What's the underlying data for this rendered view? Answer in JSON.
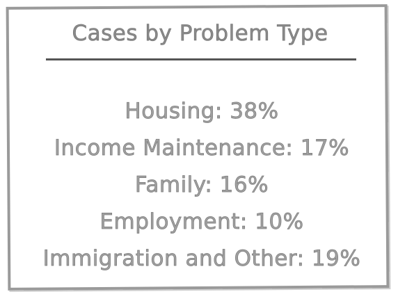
{
  "title": "Cases by Problem Type",
  "lines": [
    "Housing: 38%",
    "Income Maintenance: 17%",
    "Family: 16%",
    "Employment: 10%",
    "Immigration and Other: 19%"
  ]
}
